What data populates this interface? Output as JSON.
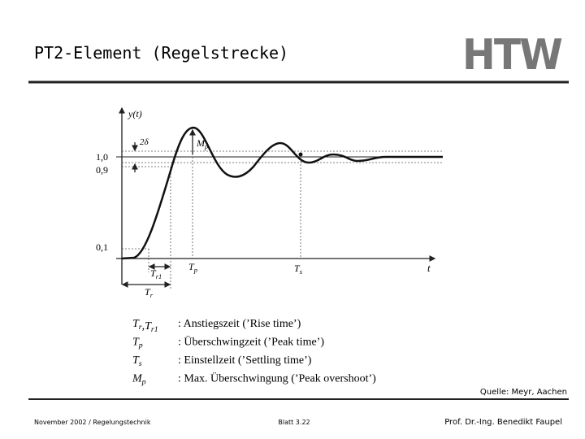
{
  "header": {
    "title": "PT2-Element (Regelstrecke)",
    "logo": "HTW"
  },
  "figure": {
    "y_axis_label": "y(t)",
    "x_axis_label": "t",
    "y_labels": [
      "1,0",
      "0,9",
      "0,1"
    ],
    "band_label": "2δ",
    "peak_label": {
      "symbol": "M",
      "sub": "p"
    },
    "time_labels": [
      {
        "symbol": "T",
        "sub": "r1"
      },
      {
        "symbol": "T",
        "sub": "p"
      },
      {
        "symbol": "T",
        "sub": "s"
      },
      {
        "symbol": "T",
        "sub": "r"
      }
    ]
  },
  "legend": {
    "rows": [
      [
        {
          "symbol": "T",
          "sub": "r"
        },
        ",",
        {
          "symbol": "T",
          "sub": "r1"
        },
        ": Anstiegszeit (’Rise time’)"
      ],
      [
        {
          "symbol": "T",
          "sub": "p"
        },
        ": Überschwingzeit (’Peak time’)"
      ],
      [
        {
          "symbol": "T",
          "sub": "s"
        },
        ": Einstellzeit (’Settling time’)"
      ],
      [
        {
          "symbol": "M",
          "sub": "p"
        },
        ": Max. Überschwingung (’Peak overshoot’)"
      ]
    ]
  },
  "source": "Quelle: Meyr, Aachen",
  "footer": {
    "left": "November 2002 / Regelungstechnik",
    "center": "Blatt 3.22",
    "right": "Prof. Dr.-Ing. Benedikt Faupel"
  }
}
